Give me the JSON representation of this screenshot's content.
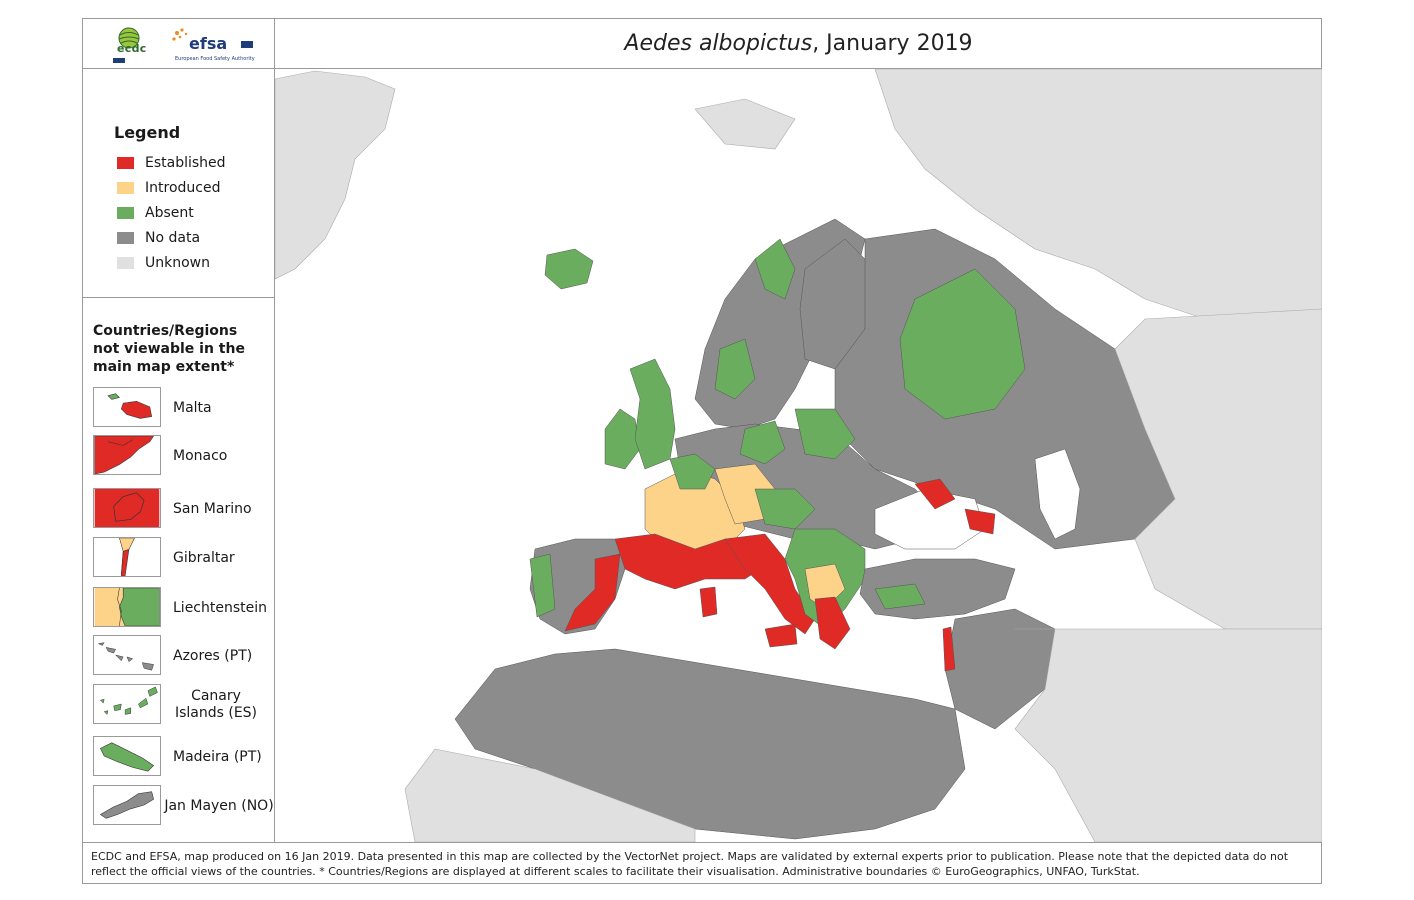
{
  "title": {
    "species": "Aedes albopictus",
    "period": ", January 2019"
  },
  "logos": {
    "ecdc": "ecdc",
    "efsa": "efsa",
    "efsa_subtitle": "European Food Safety Authority"
  },
  "legend": {
    "title": "Legend",
    "items": [
      {
        "label": "Established",
        "color": "#e02a26"
      },
      {
        "label": "Introduced",
        "color": "#fdd38a"
      },
      {
        "label": "Absent",
        "color": "#6aad5e"
      },
      {
        "label": "No data",
        "color": "#8c8c8c"
      },
      {
        "label": "Unknown",
        "color": "#e0e0e0"
      }
    ]
  },
  "insets": {
    "heading": "Countries/Regions not viewable in the main map extent*",
    "items": [
      {
        "label": "Malta",
        "status_color": "#e02a26"
      },
      {
        "label": "Monaco",
        "status_color": "#e02a26"
      },
      {
        "label": "San Marino",
        "status_color": "#e02a26"
      },
      {
        "label": "Gibraltar",
        "status_color": "#fdd38a"
      },
      {
        "label": "Liechtenstein",
        "status_color": "#6aad5e"
      },
      {
        "label": "Azores (PT)",
        "status_color": "#8c8c8c"
      },
      {
        "label": "Canary Islands (ES)",
        "status_color": "#6aad5e"
      },
      {
        "label": "Madeira (PT)",
        "status_color": "#6aad5e"
      },
      {
        "label": "Jan Mayen (NO)",
        "status_color": "#8c8c8c"
      }
    ]
  },
  "footer": {
    "text": "ECDC and EFSA, map produced on 16 Jan 2019. Data presented in this map are collected by the VectorNet project. Maps are validated by external experts prior to publication. Please note that the depicted data do not reflect the official views of the countries. * Countries/Regions are displayed at different scales to facilitate their visualisation. Administrative boundaries © EuroGeographics, UNFAO, TurkStat."
  }
}
